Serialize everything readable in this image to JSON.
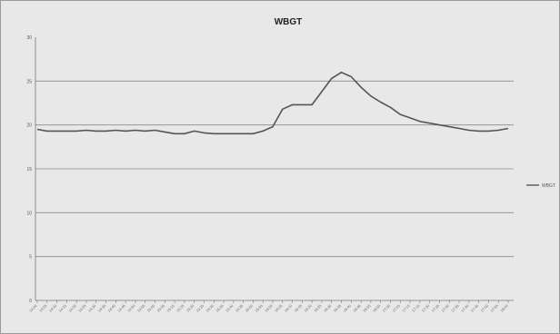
{
  "chart_data": {
    "type": "line",
    "title": "WBGT",
    "xlabel": "",
    "ylabel": "",
    "ylim": [
      0,
      30
    ],
    "yticks": [
      0,
      5,
      10,
      15,
      20,
      25,
      30
    ],
    "grid": true,
    "legend_position": "right",
    "series_color": "#555555",
    "series": [
      {
        "name": "WBGT",
        "values": [
          19.5,
          19.3,
          19.3,
          19.3,
          19.3,
          19.4,
          19.3,
          19.3,
          19.4,
          19.3,
          19.4,
          19.3,
          19.4,
          19.2,
          19.0,
          19.0,
          19.3,
          19.1,
          19.0,
          19.0,
          19.0,
          19.0,
          19.0,
          19.3,
          19.8,
          21.8,
          22.3,
          22.3,
          22.3,
          23.8,
          25.3,
          26.0,
          25.5,
          24.3,
          23.3,
          22.6,
          22.0,
          21.2,
          20.8,
          20.4,
          20.2,
          20.0,
          19.8,
          19.6,
          19.4,
          19.3,
          19.3,
          19.4,
          19.6
        ]
      }
    ],
    "x": [
      "14:00",
      "14:05",
      "14:10",
      "14:15",
      "14:20",
      "14:25",
      "14:30",
      "14:35",
      "14:40",
      "14:45",
      "14:50",
      "14:55",
      "15:00",
      "15:05",
      "15:10",
      "15:15",
      "15:20",
      "15:25",
      "15:30",
      "15:35",
      "15:40",
      "15:45",
      "15:50",
      "15:55",
      "16:00",
      "16:05",
      "16:10",
      "16:15",
      "16:20",
      "16:25",
      "16:30",
      "16:35",
      "16:40",
      "16:45",
      "16:50",
      "16:55",
      "17:00",
      "17:05",
      "17:10",
      "17:15",
      "17:20",
      "17:25",
      "17:30",
      "17:35",
      "17:40",
      "17:45",
      "17:50",
      "17:55",
      "18:00"
    ]
  }
}
